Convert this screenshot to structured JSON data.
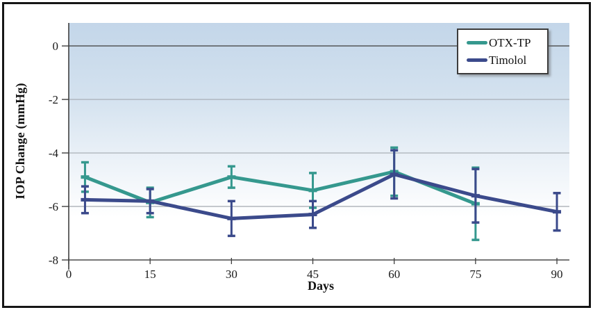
{
  "figure": {
    "frame_color": "#161616",
    "background": "#ffffff"
  },
  "chart_data": {
    "type": "line",
    "title": "",
    "xlabel": "Days",
    "ylabel": "IOP Change (mmHg)",
    "x_ticks": [
      0,
      15,
      30,
      45,
      60,
      75,
      90
    ],
    "y_ticks": [
      0,
      -2,
      -4,
      -6,
      -8
    ],
    "xlim": [
      0,
      92.3
    ],
    "ylim": [
      -8,
      0.86
    ],
    "grid": true,
    "legend_position": "top-right",
    "colors": {
      "plot_bg_top": "#c3d6e9",
      "plot_bg_mid": "#e9f0f7",
      "plot_bg_bottom": "#ffffff",
      "grid_major": "#a3a9b0",
      "grid_zero": "#4a4a4a",
      "axis": "#3f3f3f",
      "text": "#1a1a1a"
    },
    "series": [
      {
        "name": "OTX-TP",
        "color": "#35988e",
        "x": [
          3,
          15,
          30,
          45,
          60,
          75
        ],
        "y": [
          -4.9,
          -5.85,
          -4.9,
          -5.4,
          -4.7,
          -5.9
        ],
        "yerr": [
          0.55,
          0.55,
          0.4,
          0.65,
          0.9,
          1.35
        ]
      },
      {
        "name": "Timolol",
        "color": "#3b4a8b",
        "x": [
          3,
          15,
          30,
          45,
          60,
          75,
          90
        ],
        "y": [
          -5.75,
          -5.8,
          -6.45,
          -6.3,
          -4.8,
          -5.6,
          -6.2
        ],
        "yerr": [
          0.5,
          0.45,
          0.65,
          0.5,
          0.9,
          1.0,
          0.7
        ]
      }
    ]
  }
}
